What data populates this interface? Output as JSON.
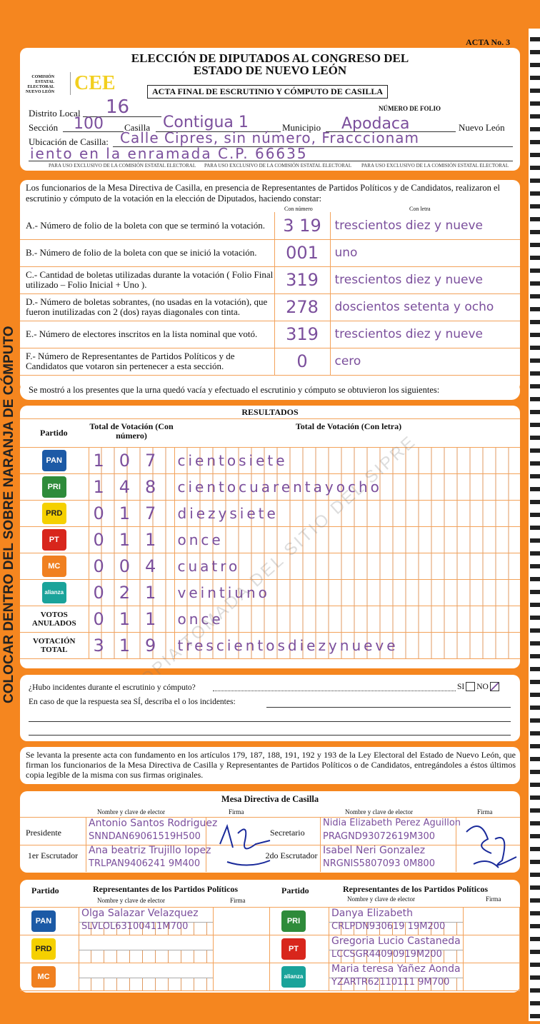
{
  "acta_no": "ACTA No. 3",
  "side_text": "COLOCAR DENTRO DEL SOBRE NARANJA DE CÓMPUTO",
  "header": {
    "title1": "ELECCIÓN DE DIPUTADOS AL CONGRESO DEL",
    "title2": "ESTADO DE NUEVO LEÓN",
    "org": [
      "COMISIÓN",
      "ESTATAL",
      "ELECTORAL",
      "NUEVO LEÓN"
    ],
    "logo": "CEE",
    "subtitle": "ACTA FINAL DE ESCRUTINIO Y CÓMPUTO DE CASILLA",
    "folio_label": "NÚMERO DE FOLIO",
    "distrito_label": "Distrito Local",
    "distrito": "16",
    "seccion_label": "Sección",
    "seccion": "100",
    "casilla_label": "Casilla",
    "casilla": "Contigua 1",
    "municipio_label": "Municipio",
    "municipio": "Apodaca",
    "estado": "Nuevo León",
    "ubicacion_label": "Ubicación de Casilla:",
    "ubicacion1": "Calle Cipres, sin número, Fracccionam",
    "ubicacion2": "iento en la enramada C.P. 66635",
    "exclusivo": "PARA USO EXCLUSIVO DE LA COMISIÓN ESTATAL ELECTORAL"
  },
  "statement": {
    "intro": "Los funcionarios de la Mesa Directiva de Casilla, en presencia de Representantes de Partidos Políticos  y de Candidatos, realizaron el escrutinio y cómputo de la votación en la elección de Diputados, haciendo constar:",
    "col_num": "Con número",
    "col_letra": "Con letra",
    "rows": [
      {
        "label": "A.- Número de folio de la boleta con que se terminó la votación.",
        "num": "3 19",
        "letra": "trescientos diez y nueve"
      },
      {
        "label": "B.- Número de folio de la boleta con que se inició la votación.",
        "num": "001",
        "letra": "uno"
      },
      {
        "label": "C.- Cantidad de boletas utilizadas durante la votación ( Folio Final utilizado – Folio Inicial + Uno ).",
        "num": "319",
        "letra": "trescientos diez y nueve"
      },
      {
        "label": "D.- Número de boletas sobrantes, (no usadas en la votación), que fueron inutilizadas con 2 (dos) rayas diagonales con tinta.",
        "num": "278",
        "letra": "doscientos setenta y ocho"
      },
      {
        "label": "E.- Número de electores inscritos en la lista nominal que votó.",
        "num": "319",
        "letra": "trescientos diez y nueve"
      },
      {
        "label": "F.- Número de Representantes de Partidos Políticos y de Candidatos que votaron sin pertenecer a esta sección.",
        "num": "0",
        "letra": "cero"
      }
    ]
  },
  "shown": "Se mostró a los presentes que la urna quedó vacía y efectuado el escrutinio y cómputo se obtuvieron los siguientes:",
  "results": {
    "title": "RESULTADOS",
    "col_partido": "Partido",
    "col_num": "Total de Votación (Con número)",
    "col_letra": "Total de Votación (Con letra)",
    "rows": [
      {
        "party": "PAN",
        "color": "#1c5aa6",
        "num": "107",
        "letra": "cientosiete"
      },
      {
        "party": "PRI",
        "color": "#2e8b3a",
        "num": "148",
        "letra": "cientocuarentayocho"
      },
      {
        "party": "PRD",
        "color": "#f5d000",
        "num": "017",
        "letra": "diezysiete"
      },
      {
        "party": "PT",
        "color": "#d8261c",
        "num": "011",
        "letra": "once"
      },
      {
        "party": "MOVIMIENTO CIUDADANO",
        "color": "#f08020",
        "num": "004",
        "letra": "cuatro"
      },
      {
        "party": "alianza",
        "color": "#1aa39a",
        "num": "021",
        "letra": "veintiuno"
      },
      {
        "party": "VOTOS ANULADOS",
        "num": "011",
        "letra": "once"
      },
      {
        "party": "VOTACIÓN TOTAL",
        "num": "319",
        "letra": "trescientosdiezynueve"
      }
    ]
  },
  "incidents": {
    "question": "¿Hubo incidentes durante el escrutinio y cómputo?",
    "si": "SI",
    "no": "NO",
    "answer": "NO",
    "describe": "En caso de que la respuesta sea SÍ, describa el o los incidentes:"
  },
  "legal": "Se levanta la presente acta con fundamento en los artículos 179, 187, 188, 191, 192 y 193 de la Ley Electoral del Estado de Nuevo León, que firman los funcionarios de la Mesa Directiva de Casilla y Representantes de  Partidos Políticos o de Candidatos, entregándoles a éstos últimos copia legible de la misma con sus firmas originales.",
  "mesa": {
    "title": "Mesa Directiva de Casilla",
    "col_nombre": "Nombre y clave de elector",
    "col_firma": "Firma",
    "presidente": {
      "label": "Presidente",
      "name": "Antonio Santos Rodriguez",
      "clave": "SNNDAN69061519H500"
    },
    "secretario": {
      "label": "Secretario",
      "name": "Nidia Elizabeth Perez Aguillon",
      "clave": "PRAGND93072619M300"
    },
    "escrutador1": {
      "label": "1er Escrutador",
      "name": "Ana beatriz Trujillo lopez",
      "clave": "TRLPAN9406241 9M400"
    },
    "escrutador2": {
      "label": "2do Escrutador",
      "name": "Isabel Neri Gonzalez",
      "clave": "NRGNIS5807093 0M800"
    }
  },
  "reps": {
    "col_partido": "Partido",
    "title": "Representantes de los Partidos Políticos",
    "col_nombre": "Nombre y clave de elector",
    "col_firma": "Firma",
    "left": [
      {
        "party": "PAN",
        "color": "#1c5aa6",
        "name": "Olga Salazar Velazquez",
        "clave": "SLVLOL63100411M700"
      },
      {
        "party": "PRD",
        "color": "#f5d000",
        "name": "",
        "clave": ""
      },
      {
        "party": "MOVIMIENTO CIUDADANO",
        "color": "#f08020",
        "name": "",
        "clave": ""
      }
    ],
    "right": [
      {
        "party": "PRI",
        "color": "#2e8b3a",
        "name": "Danya Elizabeth",
        "clave": "CRLPDN930619 19M200"
      },
      {
        "party": "PT",
        "color": "#d8261c",
        "name": "Gregoria Lucio Castaneda",
        "clave": "LCCSGR44090919M200"
      },
      {
        "party": "alianza",
        "color": "#1aa39a",
        "name": "Maria teresa Yañez Aonda",
        "clave": "YZARTR62110111 9M700"
      }
    ]
  },
  "watermark": "COPIA TOMADA DEL SITIO DEL SIPRE"
}
